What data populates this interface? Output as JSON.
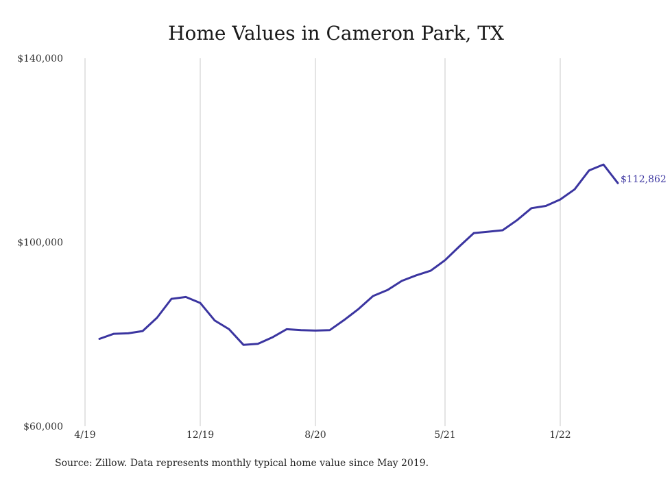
{
  "chart_data": {
    "type": "line",
    "title": "Home Values in Cameron Park, TX",
    "x_ticks": [
      "4/19",
      "12/19",
      "8/20",
      "5/21",
      "1/22"
    ],
    "y_ticks": [
      "$60,000",
      "$100,000",
      "$140,000"
    ],
    "ylim": [
      60000,
      140000
    ],
    "grid": "vertical",
    "series": [
      {
        "color": "#3b35a0",
        "end_label": "$112,862",
        "x": [
          "5/19",
          "6/19",
          "7/19",
          "8/19",
          "9/19",
          "10/19",
          "11/19",
          "12/19",
          "1/20",
          "2/20",
          "3/20",
          "4/20",
          "5/20",
          "6/20",
          "7/20",
          "8/20",
          "9/20",
          "10/20",
          "11/20",
          "12/20",
          "1/21",
          "2/21",
          "3/21",
          "4/21",
          "5/21",
          "6/21",
          "7/21",
          "8/21",
          "9/21",
          "10/21",
          "11/21",
          "12/21",
          "1/22",
          "2/22",
          "3/22",
          "4/22",
          "5/22"
        ],
        "values": [
          79000,
          80100,
          80200,
          80700,
          83600,
          87700,
          88100,
          86800,
          83000,
          81100,
          77700,
          77900,
          79300,
          81100,
          80900,
          80800,
          80900,
          83100,
          85500,
          88300,
          89600,
          91600,
          92800,
          93800,
          96100,
          99100,
          102000,
          102300,
          102600,
          104800,
          107400,
          107900,
          109300,
          111500,
          115600,
          116900,
          112862
        ]
      }
    ],
    "source": "Source: Zillow. Data represents monthly typical home value since May 2019."
  }
}
